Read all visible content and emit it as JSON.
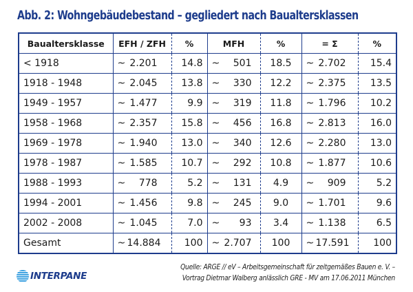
{
  "title": "Abb. 2: Wohngebäudebestand – gegliedert nach Baualtersklassen",
  "table": {
    "headers": [
      "Baualtersklasse",
      "EFH / ZFH",
      "%",
      "MFH",
      "%",
      "= Σ",
      "%"
    ],
    "rows": [
      {
        "label": "< 1918",
        "efh": "2.201",
        "efh_pct": "14.8",
        "mfh": "501",
        "mfh_pct": "18.5",
        "sum": "2.702",
        "sum_pct": "15.4"
      },
      {
        "label": "1918 - 1948",
        "efh": "2.045",
        "efh_pct": "13.8",
        "mfh": "330",
        "mfh_pct": "12.2",
        "sum": "2.375",
        "sum_pct": "13.5"
      },
      {
        "label": "1949 - 1957",
        "efh": "1.477",
        "efh_pct": "9.9",
        "mfh": "319",
        "mfh_pct": "11.8",
        "sum": "1.796",
        "sum_pct": "10.2"
      },
      {
        "label": "1958 - 1968",
        "efh": "2.357",
        "efh_pct": "15.8",
        "mfh": "456",
        "mfh_pct": "16.8",
        "sum": "2.813",
        "sum_pct": "16.0"
      },
      {
        "label": "1969 - 1978",
        "efh": "1.940",
        "efh_pct": "13.0",
        "mfh": "340",
        "mfh_pct": "12.6",
        "sum": "2.280",
        "sum_pct": "13.0"
      },
      {
        "label": "1978 - 1987",
        "efh": "1.585",
        "efh_pct": "10.7",
        "mfh": "292",
        "mfh_pct": "10.8",
        "sum": "1.877",
        "sum_pct": "10.6"
      },
      {
        "label": "1988 - 1993",
        "efh": "778",
        "efh_pct": "5.2",
        "mfh": "131",
        "mfh_pct": "4.9",
        "sum": "909",
        "sum_pct": "5.2"
      },
      {
        "label": "1994 - 2001",
        "efh": "1.456",
        "efh_pct": "9.8",
        "mfh": "245",
        "mfh_pct": "9.0",
        "sum": "1.701",
        "sum_pct": "9.6"
      },
      {
        "label": "2002 - 2008",
        "efh": "1.045",
        "efh_pct": "7.0",
        "mfh": "93",
        "mfh_pct": "3.4",
        "sum": "1.138",
        "sum_pct": "6.5"
      },
      {
        "label": "Gesamt",
        "efh": "14.884",
        "efh_pct": "100",
        "mfh": "2.707",
        "mfh_pct": "100",
        "sum": "17.591",
        "sum_pct": "100"
      }
    ],
    "approx_symbol": "~"
  },
  "logo": {
    "icon": "interpane-globe-icon",
    "text": "INTERPANE"
  },
  "source": {
    "line1": "Quelle: ARGE // eV – Arbeitsgemeinschaft für zeitgemäßes Bauen e. V. –",
    "line2": "Vortrag Dietmar Walberg anlässlich GRE - MV am 17.06.2011 München"
  }
}
